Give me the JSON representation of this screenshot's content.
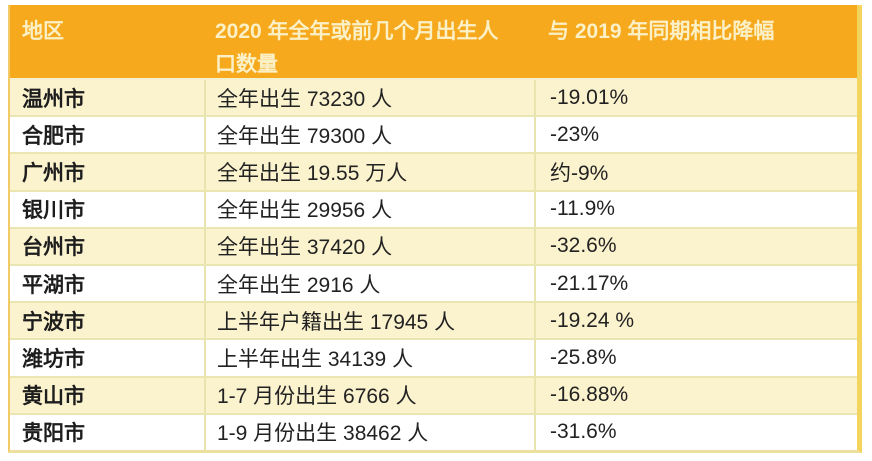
{
  "colors": {
    "header_bg": "#F6A91C",
    "header_text": "#FBF0C6",
    "row_alt_bg": "#FBF2CE",
    "row_bg": "#FFFFFF",
    "grid_line": "#E8E4AE",
    "outer_border_gold": "#F3D45E",
    "body_text": "#222222"
  },
  "chart_data": {
    "type": "table",
    "columns": [
      "地区",
      "2020 年全年或前几个月出生人口数量",
      "与 2019 年同期相比降幅"
    ],
    "rows": [
      [
        "温州市",
        "全年出生 73230 人",
        "-19.01%"
      ],
      [
        "合肥市",
        "全年出生 79300 人",
        "-23%"
      ],
      [
        "广州市",
        "全年出生 19.55 万人",
        "约-9%"
      ],
      [
        "银川市",
        "全年出生 29956 人",
        "-11.9%"
      ],
      [
        "台州市",
        "全年出生 37420 人",
        "-32.6%"
      ],
      [
        "平湖市",
        "全年出生 2916 人",
        "-21.17%"
      ],
      [
        "宁波市",
        "上半年户籍出生 17945 人",
        "-19.24 %"
      ],
      [
        "潍坊市",
        "上半年出生 34139 人",
        "-25.8%"
      ],
      [
        "黄山市",
        "1-7 月份出生 6766 人",
        "-16.88%"
      ],
      [
        "贵阳市",
        "1-9 月份出生 38462 人",
        "-31.6%"
      ]
    ]
  }
}
